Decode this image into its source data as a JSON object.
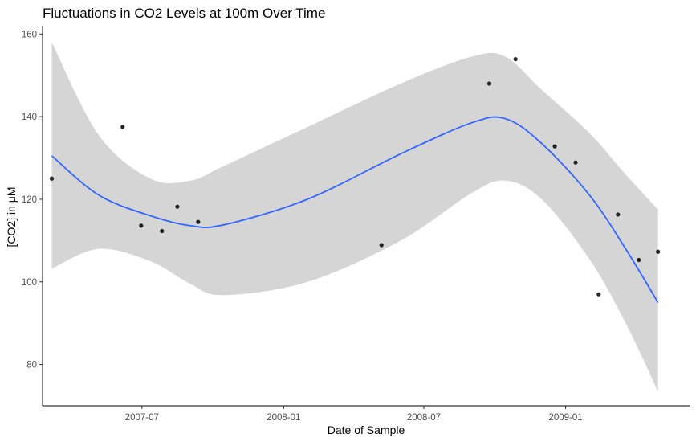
{
  "chart_data": {
    "type": "scatter",
    "title": "Fluctuations in CO2 Levels at 100m Over Time",
    "xlabel": "Date of Sample",
    "ylabel": "[CO2] in μM",
    "xlim": [
      "2007-02-22",
      "2009-06-12"
    ],
    "ylim": [
      70,
      162
    ],
    "x_ticks": [
      {
        "value": "2007-07-01",
        "label": "2007-07"
      },
      {
        "value": "2008-01-01",
        "label": "2008-01"
      },
      {
        "value": "2008-07-01",
        "label": "2008-07"
      },
      {
        "value": "2009-01-01",
        "label": "2009-01"
      }
    ],
    "y_ticks": [
      80,
      100,
      120,
      140,
      160
    ],
    "grid": false,
    "legend": "none",
    "points": [
      {
        "x": "2007-03-06",
        "y": 125.0
      },
      {
        "x": "2007-06-06",
        "y": 137.5
      },
      {
        "x": "2007-06-30",
        "y": 113.6
      },
      {
        "x": "2007-07-27",
        "y": 112.3
      },
      {
        "x": "2007-08-16",
        "y": 118.2
      },
      {
        "x": "2007-09-12",
        "y": 114.5
      },
      {
        "x": "2008-05-07",
        "y": 108.9
      },
      {
        "x": "2008-09-24",
        "y": 148.0
      },
      {
        "x": "2008-10-28",
        "y": 153.9
      },
      {
        "x": "2008-12-18",
        "y": 132.8
      },
      {
        "x": "2009-01-14",
        "y": 128.9
      },
      {
        "x": "2009-02-13",
        "y": 97.0
      },
      {
        "x": "2009-03-10",
        "y": 116.3
      },
      {
        "x": "2009-04-06",
        "y": 105.3
      },
      {
        "x": "2009-05-01",
        "y": 107.3
      }
    ],
    "smooth": {
      "method": "loess",
      "x": [
        "2007-03-06",
        "2007-05-06",
        "2007-07-12",
        "2007-09-02",
        "2007-10-15",
        "2008-02-01",
        "2008-06-01",
        "2008-09-01",
        "2008-10-15",
        "2008-12-01",
        "2009-02-01",
        "2009-03-20",
        "2009-05-01"
      ],
      "y": [
        130.5,
        121.0,
        116.0,
        113.6,
        113.8,
        120.0,
        131.0,
        138.5,
        139.5,
        133.5,
        121.0,
        108.0,
        95.0
      ],
      "lower": [
        103.2,
        108.0,
        105.0,
        99.5,
        96.8,
        100.0,
        110.0,
        121.5,
        124.5,
        120.0,
        105.5,
        90.0,
        73.5
      ],
      "upper": [
        158.0,
        135.5,
        125.0,
        124.5,
        128.0,
        137.5,
        148.0,
        154.5,
        154.5,
        146.5,
        136.0,
        126.0,
        117.5
      ],
      "line_color": "#3366ff",
      "band_color": "#d5d5d5"
    },
    "point_color": "#000000"
  }
}
